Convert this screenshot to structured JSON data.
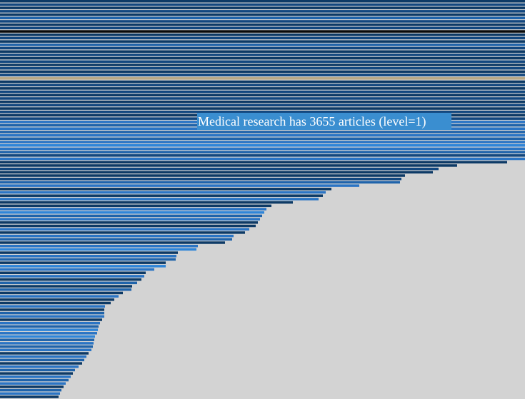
{
  "tooltip": {
    "text": "Medical research has 3655 articles (level=1)"
  },
  "chart_data": {
    "type": "bar",
    "orientation": "horizontal",
    "title": "",
    "xlabel": "",
    "ylabel": "",
    "background": "#d3d3d3",
    "colors": {
      "navy": "#0d3a66",
      "dark": "#12477f",
      "mid": "#1f63aa",
      "blue": "#2a74c4",
      "bright": "#2f85d8",
      "highlight": "#b9a886",
      "black": "#0a0a0a"
    },
    "values": [
      735,
      735,
      735,
      735,
      735,
      735,
      735,
      735,
      735,
      735,
      735,
      735,
      735,
      735,
      735,
      735,
      735,
      735,
      735,
      735,
      735,
      735,
      735,
      735,
      735,
      735,
      735,
      735,
      735,
      735,
      735,
      735,
      735,
      735,
      735,
      735,
      735,
      735,
      735,
      735,
      735,
      735,
      735,
      735,
      735,
      735,
      735,
      735,
      710,
      640,
      614,
      606,
      567,
      562,
      560,
      503,
      464,
      456,
      452,
      446,
      410,
      380,
      373,
      370,
      367,
      364,
      361,
      358,
      349,
      343,
      327,
      325,
      315,
      277,
      275,
      249,
      247,
      246,
      232,
      232,
      216,
      204,
      202,
      198,
      192,
      185,
      184,
      172,
      166,
      160,
      155,
      147,
      146,
      146,
      146,
      143,
      140,
      138,
      137,
      136,
      133,
      132,
      131,
      130,
      128,
      124,
      121,
      118,
      115,
      110,
      105,
      102,
      99,
      96,
      92,
      89,
      86,
      84,
      82
    ],
    "color_keys": [
      "navy",
      "dark",
      "navy",
      "dark",
      "navy",
      "mid",
      "dark",
      "navy",
      "dark",
      "black",
      "navy",
      "dark",
      "navy",
      "mid",
      "dark",
      "navy",
      "dark",
      "navy",
      "dark",
      "navy",
      "dark",
      "navy",
      "dark",
      "highlight",
      "navy",
      "dark",
      "navy",
      "dark",
      "navy",
      "dark",
      "navy",
      "dark",
      "navy",
      "dark",
      "navy",
      "dark",
      "blue",
      "mid",
      "blue",
      "mid",
      "blue",
      "mid",
      "blue",
      "bright",
      "blue",
      "mid",
      "dark",
      "blue",
      "navy",
      "navy",
      "dark",
      "navy",
      "navy",
      "dark",
      "mid",
      "blue",
      "navy",
      "blue",
      "navy",
      "blue",
      "navy",
      "navy",
      "blue",
      "bright",
      "mid",
      "blue",
      "navy",
      "navy",
      "blue",
      "navy",
      "blue",
      "mid",
      "navy",
      "blue",
      "bright",
      "navy",
      "blue",
      "mid",
      "navy",
      "bright",
      "blue",
      "navy",
      "blue",
      "navy",
      "mid",
      "navy",
      "mid",
      "navy",
      "blue",
      "navy",
      "navy",
      "blue",
      "navy",
      "mid",
      "blue",
      "navy",
      "blue",
      "mid",
      "bright",
      "blue",
      "bright",
      "mid",
      "blue",
      "mid",
      "blue",
      "navy",
      "blue",
      "mid",
      "navy",
      "blue",
      "mid",
      "navy",
      "blue",
      "mid",
      "blue",
      "navy",
      "mid",
      "blue",
      "navy"
    ]
  }
}
